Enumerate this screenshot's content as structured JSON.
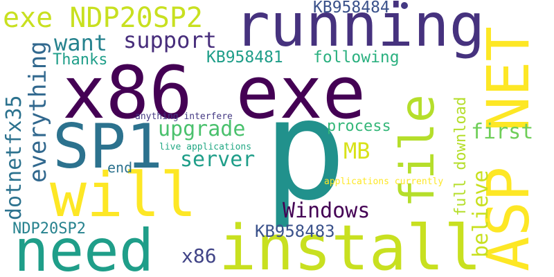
{
  "word_cloud": {
    "words": [
      {
        "text": "running",
        "color": "#46327e"
      },
      {
        "text": "x86 exe",
        "color": "#440154"
      },
      {
        "text": "p",
        "color": "#21918c"
      },
      {
        "text": "ASP NET",
        "color": "#fde725"
      },
      {
        "text": "install",
        "color": "#c8e020"
      },
      {
        "text": "need",
        "color": "#1f9e89"
      },
      {
        "text": "SP1",
        "color": "#2c728e"
      },
      {
        "text": "will",
        "color": "#fde725"
      },
      {
        "text": "file",
        "color": "#b5de2b"
      },
      {
        "text": "exe NDP20SP2",
        "color": "#c8e020"
      },
      {
        "text": "want",
        "color": "#26828e"
      },
      {
        "text": "support",
        "color": "#472d7b"
      },
      {
        "text": "KB958484",
        "color": "#3b528b"
      },
      {
        "text": "KB958481",
        "color": "#1f9e89"
      },
      {
        "text": "following",
        "color": "#2ab07f"
      },
      {
        "text": "Thanks",
        "color": "#1f9e89"
      },
      {
        "text": "everything",
        "color": "#31688e"
      },
      {
        "text": "dotnetfx35",
        "color": "#2c728e"
      },
      {
        "text": "upgrade",
        "color": "#4ac16d"
      },
      {
        "text": "server",
        "color": "#1f9e89"
      },
      {
        "text": "end",
        "color": "#2c728e"
      },
      {
        "text": "MB",
        "color": "#d8e219"
      },
      {
        "text": "process",
        "color": "#35b779"
      },
      {
        "text": "first",
        "color": "#6ece58"
      },
      {
        "text": "full download",
        "color": "#b5de2b"
      },
      {
        "text": "believe",
        "color": "#c8e020"
      },
      {
        "text": "anything interfere",
        "color": "#443983"
      },
      {
        "text": "live applications",
        "color": "#22a884"
      },
      {
        "text": "applications currently",
        "color": "#fde725"
      },
      {
        "text": "Windows",
        "color": "#440154"
      },
      {
        "text": "NDP20SP2",
        "color": "#26828e"
      },
      {
        "text": "KB958483",
        "color": "#3b528b"
      },
      {
        "text": "x86",
        "color": "#414487"
      }
    ]
  }
}
